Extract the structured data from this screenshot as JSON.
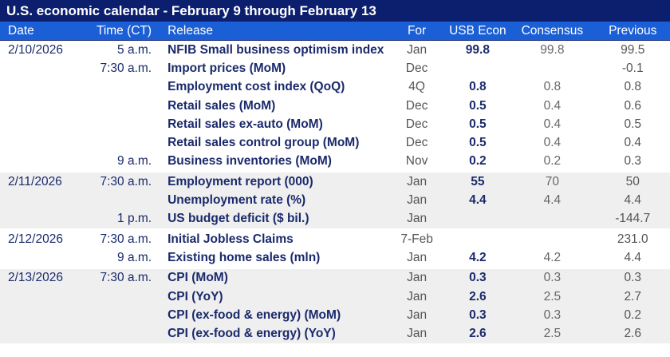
{
  "title": "U.S. economic calendar - February 9 through February 13",
  "headers": {
    "date": "Date",
    "time": "Time (CT)",
    "release": "Release",
    "for": "For",
    "usb": "USB Econ",
    "consensus": "Consensus",
    "previous": "Previous"
  },
  "colors": {
    "title_bg": "#0c1f6e",
    "header_bg": "#1b5fd6",
    "alt_row": "#efefef"
  },
  "rows": [
    {
      "date": "2/10/2026",
      "time": "5 a.m.",
      "release": "NFIB Small business optimism index",
      "for": "Jan",
      "usb": "99.8",
      "consensus": "99.8",
      "previous": "99.5",
      "group": 1,
      "first": true
    },
    {
      "date": "",
      "time": "7:30 a.m.",
      "release": "Import prices (MoM)",
      "for": "Dec",
      "usb": "",
      "consensus": "",
      "previous": "-0.1",
      "group": 1
    },
    {
      "date": "",
      "time": "",
      "release": "Employment cost index (QoQ)",
      "for": "4Q",
      "usb": "0.8",
      "consensus": "0.8",
      "previous": "0.8",
      "group": 1
    },
    {
      "date": "",
      "time": "",
      "release": "Retail sales (MoM)",
      "for": "Dec",
      "usb": "0.5",
      "consensus": "0.4",
      "previous": "0.6",
      "group": 1
    },
    {
      "date": "",
      "time": "",
      "release": "Retail sales ex-auto (MoM)",
      "for": "Dec",
      "usb": "0.5",
      "consensus": "0.4",
      "previous": "0.5",
      "group": 1
    },
    {
      "date": "",
      "time": "",
      "release": "Retail sales control group (MoM)",
      "for": "Dec",
      "usb": "0.5",
      "consensus": "0.4",
      "previous": "0.4",
      "group": 1
    },
    {
      "date": "",
      "time": "9 a.m.",
      "release": "Business inventories (MoM)",
      "for": "Nov",
      "usb": "0.2",
      "consensus": "0.2",
      "previous": "0.3",
      "group": 1
    },
    {
      "date": "2/11/2026",
      "time": "7:30 a.m.",
      "release": "Employment report (000)",
      "for": "Jan",
      "usb": "55",
      "consensus": "70",
      "previous": "50",
      "group": 2,
      "first": true
    },
    {
      "date": "",
      "time": "",
      "release": "Unemployment rate (%)",
      "for": "Jan",
      "usb": "4.4",
      "consensus": "4.4",
      "previous": "4.4",
      "group": 2
    },
    {
      "date": "",
      "time": "1 p.m.",
      "release": "US budget deficit ($ bil.)",
      "for": "Jan",
      "usb": "",
      "consensus": "",
      "previous": "-144.7",
      "group": 2
    },
    {
      "date": "2/12/2026",
      "time": "7:30 a.m.",
      "release": "Initial Jobless Claims",
      "for": "7-Feb",
      "usb": "",
      "consensus": "",
      "previous": "231.0",
      "group": 1,
      "first": true
    },
    {
      "date": "",
      "time": "9 a.m.",
      "release": "Existing home sales (mln)",
      "for": "Jan",
      "usb": "4.2",
      "consensus": "4.2",
      "previous": "4.4",
      "group": 1
    },
    {
      "date": "2/13/2026",
      "time": "7:30 a.m.",
      "release": "CPI (MoM)",
      "for": "Jan",
      "usb": "0.3",
      "consensus": "0.3",
      "previous": "0.3",
      "group": 2,
      "first": true
    },
    {
      "date": "",
      "time": "",
      "release": "CPI (YoY)",
      "for": "Jan",
      "usb": "2.6",
      "consensus": "2.5",
      "previous": "2.7",
      "group": 2
    },
    {
      "date": "",
      "time": "",
      "release": "CPI (ex-food & energy) (MoM)",
      "for": "Jan",
      "usb": "0.3",
      "consensus": "0.3",
      "previous": "0.2",
      "group": 2
    },
    {
      "date": "",
      "time": "",
      "release": "CPI (ex-food & energy) (YoY)",
      "for": "Jan",
      "usb": "2.6",
      "consensus": "2.5",
      "previous": "2.6",
      "group": 2
    }
  ]
}
